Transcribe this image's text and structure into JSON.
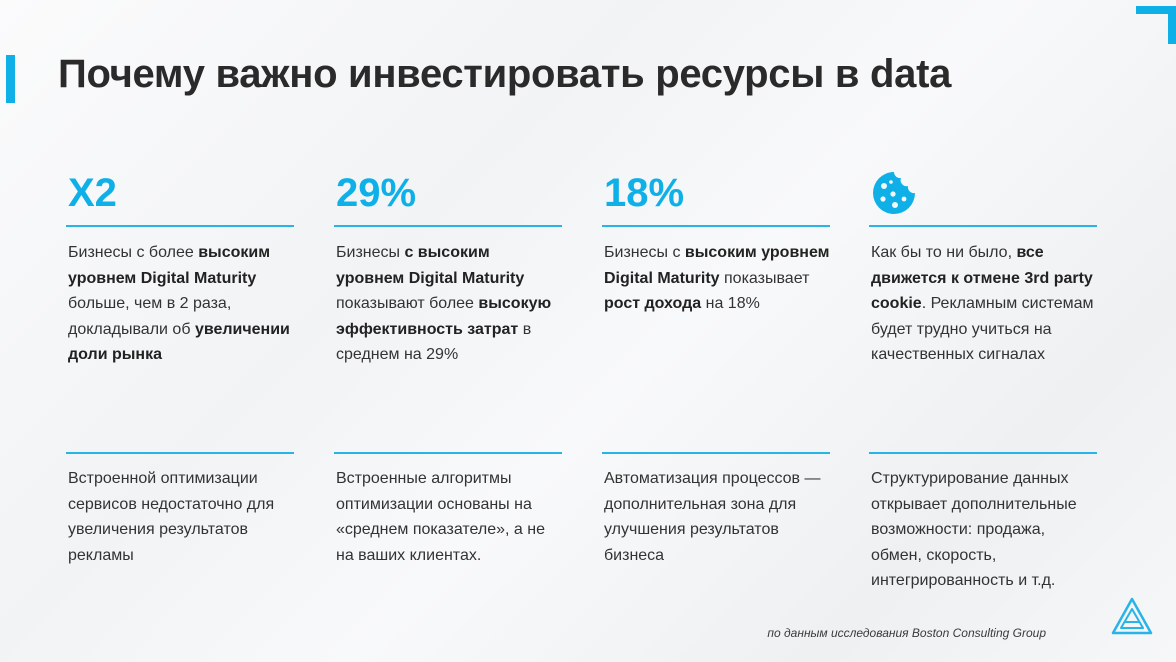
{
  "title": "Почему важно инвестировать ресурсы в data",
  "columns": [
    {
      "stat": "X2",
      "parts": [
        {
          "t": "Бизнесы с более ",
          "b": false
        },
        {
          "t": "высоким уровнем Digital Maturity",
          "b": true
        },
        {
          "t": " больше, чем в 2 раза, докладывали об ",
          "b": false
        },
        {
          "t": "увеличении доли рынка",
          "b": true
        }
      ],
      "lower": "Встроенной оптимизации сервисов недостаточно для увеличения результатов рекламы"
    },
    {
      "stat": "29%",
      "parts": [
        {
          "t": "Бизнесы ",
          "b": false
        },
        {
          "t": "с высоким уровнем Digital Maturity",
          "b": true
        },
        {
          "t": " показывают более ",
          "b": false
        },
        {
          "t": "высокую эффективность затрат",
          "b": true
        },
        {
          "t": " в среднем на 29%",
          "b": false
        }
      ],
      "lower": "Встроенные алгоритмы оптимизации основаны на «среднем показателе», а не на ваших клиентах."
    },
    {
      "stat": "18%",
      "parts": [
        {
          "t": "Бизнесы с ",
          "b": false
        },
        {
          "t": "высоким уровнем Digital Maturity",
          "b": true
        },
        {
          "t": " показывает ",
          "b": false
        },
        {
          "t": "рост дохода",
          "b": true
        },
        {
          "t": " на 18%",
          "b": false
        }
      ],
      "lower": "Автоматизация процессов — дополнительная зона для улучшения результатов бизнеса"
    },
    {
      "icon": "cookie-icon",
      "parts": [
        {
          "t": "Как бы то ни было, ",
          "b": false
        },
        {
          "t": "все движется к отмене 3rd party cookie",
          "b": true
        },
        {
          "t": ". Рекламным системам будет трудно учиться на качественных сигналах",
          "b": false
        }
      ],
      "lower": "Структурирование данных открывает дополнительные возможности: продажа, обмен, скорость, интегрированность и т.д."
    }
  ],
  "source": "по данным исследования Boston Consulting Group",
  "colors": {
    "accent": "#0fb0e8",
    "text": "#2b2b2b"
  },
  "logo_icon": "triangle-logo-icon"
}
